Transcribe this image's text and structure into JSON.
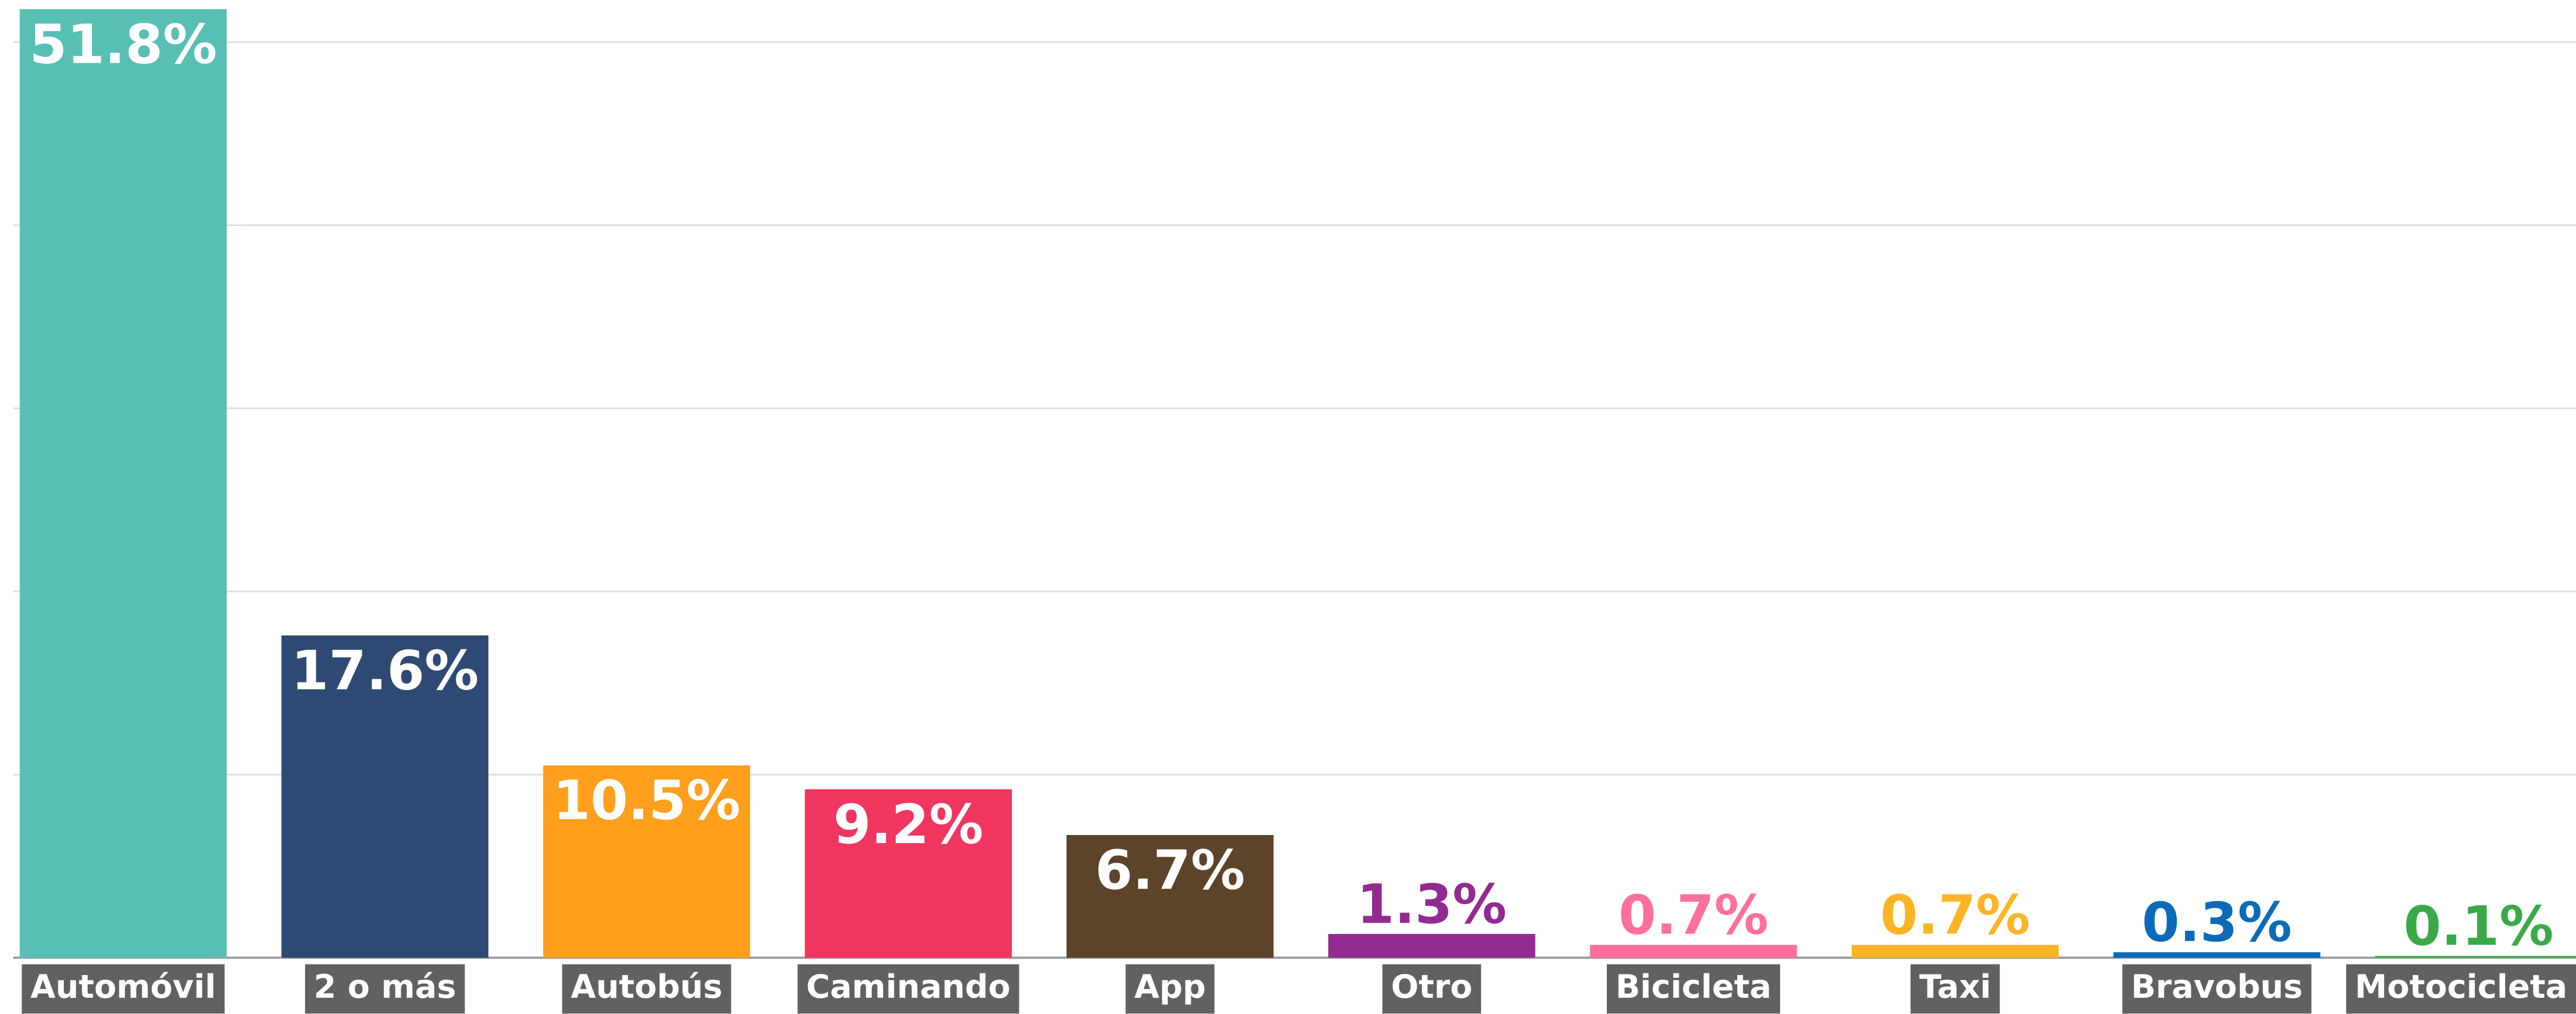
{
  "chart_data": {
    "type": "bar",
    "categories": [
      "Automóvil",
      "2 o más",
      "Autobús",
      "Caminando",
      "App",
      "Otro",
      "Bicicleta",
      "Taxi",
      "Bravobus",
      "Motocicleta"
    ],
    "values": [
      51.8,
      17.6,
      10.5,
      9.2,
      6.7,
      1.3,
      0.7,
      0.7,
      0.3,
      0.1
    ],
    "value_labels": [
      "51.8%",
      "17.6%",
      "10.5%",
      "9.2%",
      "6.7%",
      "1.3%",
      "0.7%",
      "0.7%",
      "0.3%",
      "0.1%"
    ],
    "colors": [
      "#58bfb5",
      "#2e4a74",
      "#ff9f1c",
      "#f0365f",
      "#5c4329",
      "#922b8f",
      "#ff6f9c",
      "#fcb424",
      "#0b6bb8",
      "#3aaa49"
    ],
    "ylim": [
      0,
      52.3
    ],
    "yticks": [
      0,
      10,
      20,
      30,
      40,
      50
    ],
    "grid": true
  }
}
